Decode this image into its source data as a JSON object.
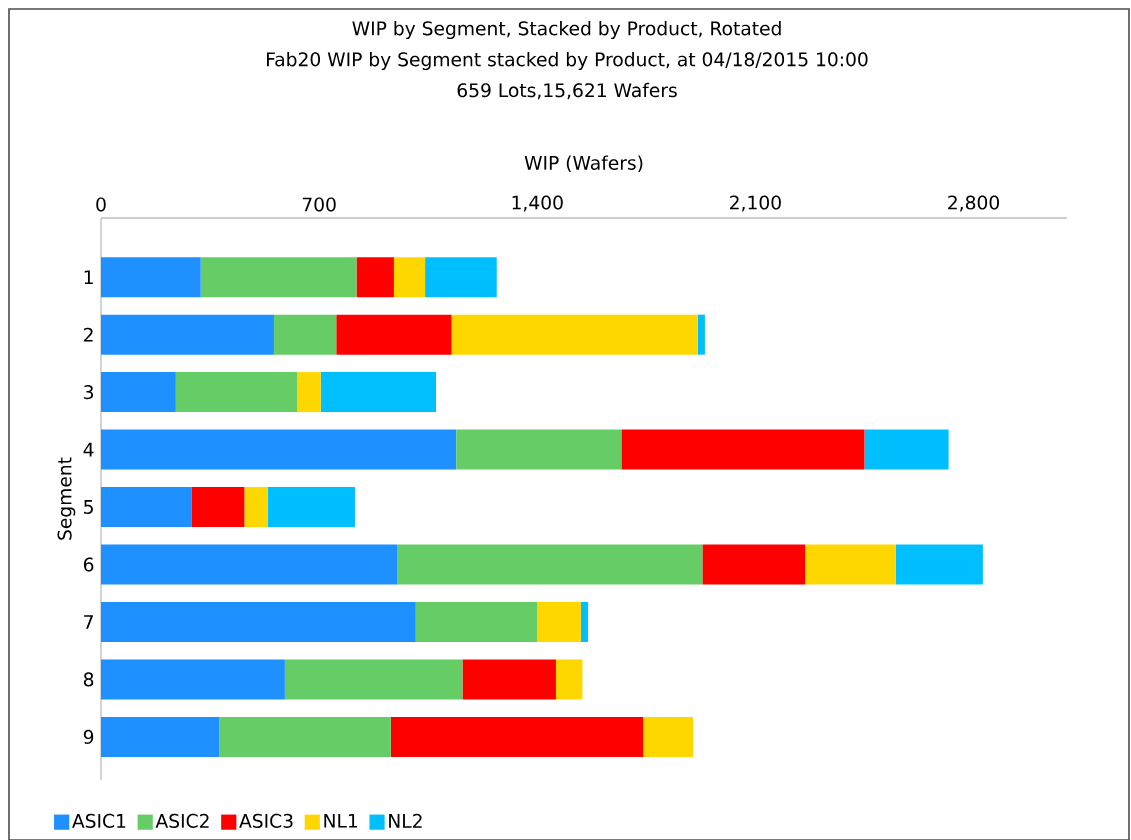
{
  "chart_data": {
    "type": "bar",
    "orientation": "horizontal",
    "stacked": true,
    "title": "WIP by Segment, Stacked by Product, Rotated",
    "subtitle": "Fab20 WIP by Segment stacked by Product, at 04/18/2015 10:00",
    "annotations": [
      "659 Lots,15,621 Wafers"
    ],
    "xlabel": "WIP (Wafers)",
    "ylabel": "Segment",
    "categories": [
      "1",
      "2",
      "3",
      "4",
      "5",
      "6",
      "7",
      "8",
      "9"
    ],
    "xlim": [
      0,
      3100
    ],
    "xticks": [
      0,
      700,
      {
        "value": 1400,
        "label": "1,400"
      },
      {
        "value": 2100,
        "label": "2,100"
      },
      {
        "value": 2800,
        "label": "2,800"
      }
    ],
    "legend": "bottom left",
    "series": [
      {
        "name": "ASIC1",
        "color": "#1e90ff",
        "values": [
          320,
          555,
          240,
          1140,
          290,
          950,
          1010,
          590,
          380
        ]
      },
      {
        "name": "ASIC2",
        "color": "#66cc66",
        "values": [
          500,
          200,
          390,
          530,
          0,
          980,
          390,
          570,
          550
        ]
      },
      {
        "name": "ASIC3",
        "color": "#ff0000",
        "values": [
          120,
          370,
          0,
          780,
          170,
          330,
          0,
          300,
          810
        ]
      },
      {
        "name": "NL1",
        "color": "#ffd700",
        "values": [
          100,
          790,
          75,
          0,
          75,
          290,
          140,
          85,
          160
        ]
      },
      {
        "name": "NL2",
        "color": "#00bfff",
        "values": [
          230,
          23,
          370,
          270,
          280,
          280,
          23,
          0,
          0
        ]
      }
    ]
  }
}
